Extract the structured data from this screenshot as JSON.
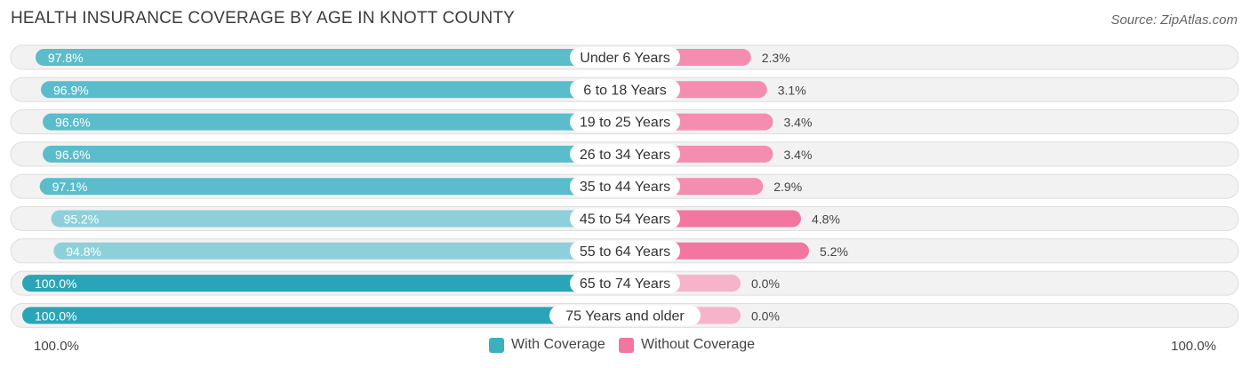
{
  "title": "HEALTH INSURANCE COVERAGE BY AGE IN KNOTT COUNTY",
  "source": "Source: ZipAtlas.com",
  "chart_data": {
    "type": "bar",
    "orientation": "horizontal-diverging",
    "categories": [
      "Under 6 Years",
      "6 to 18 Years",
      "19 to 25 Years",
      "26 to 34 Years",
      "35 to 44 Years",
      "45 to 54 Years",
      "55 to 64 Years",
      "65 to 74 Years",
      "75 Years and older"
    ],
    "series": [
      {
        "name": "With Coverage",
        "values": [
          97.8,
          96.9,
          96.6,
          96.6,
          97.1,
          95.2,
          94.8,
          100.0,
          100.0
        ],
        "labels": [
          "97.8%",
          "96.9%",
          "96.6%",
          "96.6%",
          "97.1%",
          "95.2%",
          "94.8%",
          "100.0%",
          "100.0%"
        ]
      },
      {
        "name": "Without Coverage",
        "values": [
          2.3,
          3.1,
          3.4,
          3.4,
          2.9,
          4.8,
          5.2,
          0.0,
          0.0
        ],
        "labels": [
          "2.3%",
          "3.1%",
          "3.4%",
          "3.4%",
          "2.9%",
          "4.8%",
          "5.2%",
          "0.0%",
          "0.0%"
        ]
      }
    ],
    "axis": {
      "left_label": "100.0%",
      "right_label": "100.0%"
    },
    "legend_position": "bottom-center",
    "colors": {
      "with_coverage": [
        "#5bbccb",
        "#5bbccb",
        "#5bbccb",
        "#5bbccb",
        "#5bbccb",
        "#8dd0da",
        "#8dd0da",
        "#2aa5b8",
        "#2aa5b8"
      ],
      "without_coverage": [
        "#f58db0",
        "#f58db0",
        "#f58db0",
        "#f58db0",
        "#f58db0",
        "#f2769f",
        "#f2769f",
        "#f7b3ca",
        "#f7b3ca"
      ],
      "legend_with": "#3bb0c0",
      "legend_without": "#f2769f"
    }
  }
}
